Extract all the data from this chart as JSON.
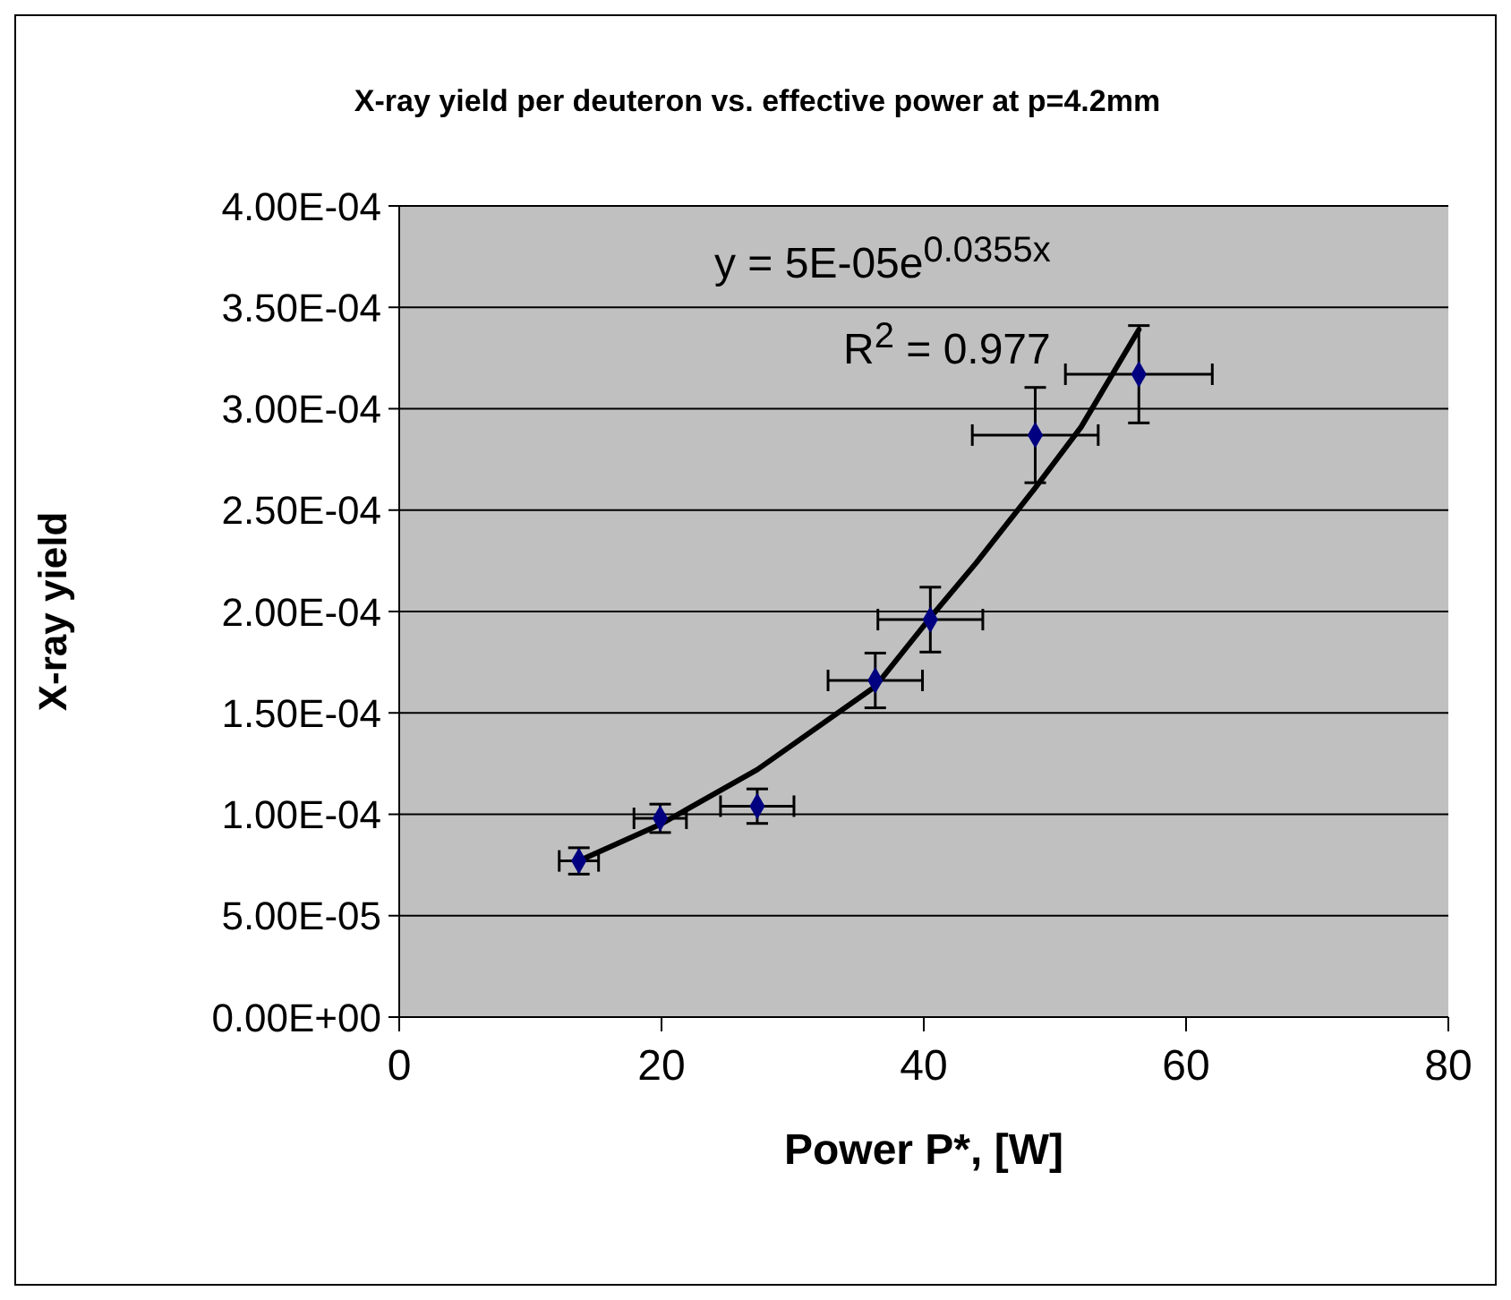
{
  "chart_data": {
    "type": "scatter",
    "title": "X-ray yield per deuteron vs. effective power at p=4.2mm",
    "xlabel": "Power P*, [W]",
    "ylabel": "X-ray yield",
    "annotations": [
      "y = 5E-05e$^{0.0355x}$",
      "R$^{2}$ = 0.977"
    ],
    "xlim": [
      0,
      80
    ],
    "xticks": [
      0,
      20,
      40,
      60,
      80
    ],
    "ylim": [
      0,
      0.0004
    ],
    "yticks": [
      {
        "value": 0,
        "label": "0.00E+00"
      },
      {
        "value": 5e-05,
        "label": "5.00E-05"
      },
      {
        "value": 0.0001,
        "label": "1.00E-04"
      },
      {
        "value": 0.00015,
        "label": "1.50E-04"
      },
      {
        "value": 0.0002,
        "label": "2.00E-04"
      },
      {
        "value": 0.00025,
        "label": "2.50E-04"
      },
      {
        "value": 0.0003,
        "label": "3.00E-04"
      },
      {
        "value": 0.00035,
        "label": "3.50E-04"
      },
      {
        "value": 0.0004,
        "label": "4.00E-04"
      }
    ],
    "grid": "y",
    "legend": false,
    "marker": "diamond",
    "series": [
      {
        "type": "scatter",
        "color": "#000080",
        "x": [
          13.7,
          19.9,
          27.3,
          36.3,
          40.5,
          48.5,
          56.4
        ],
        "values": [
          7.7e-05,
          9.8e-05,
          0.000104,
          0.000166,
          0.000196,
          0.000287,
          0.000317
        ],
        "errors": [
          6.5e-06,
          7e-06,
          8.5e-06,
          1.35e-05,
          1.6e-05,
          2.35e-05,
          2.4e-05
        ],
        "xerrors": [
          1.5,
          2.0,
          2.8,
          3.6,
          4.0,
          4.8,
          5.6
        ]
      },
      {
        "type": "line",
        "color": "#000000",
        "marker": "none",
        "line_style": "solid",
        "x": [
          13.7,
          19.9,
          27.3,
          36.3,
          40.5,
          44,
          48.5,
          52,
          56.4
        ],
        "values": [
          7.7e-05,
          9.5e-05,
          0.000122,
          0.000163,
          0.000197,
          0.000224,
          0.000261,
          0.000291,
          0.000339
        ]
      }
    ]
  }
}
